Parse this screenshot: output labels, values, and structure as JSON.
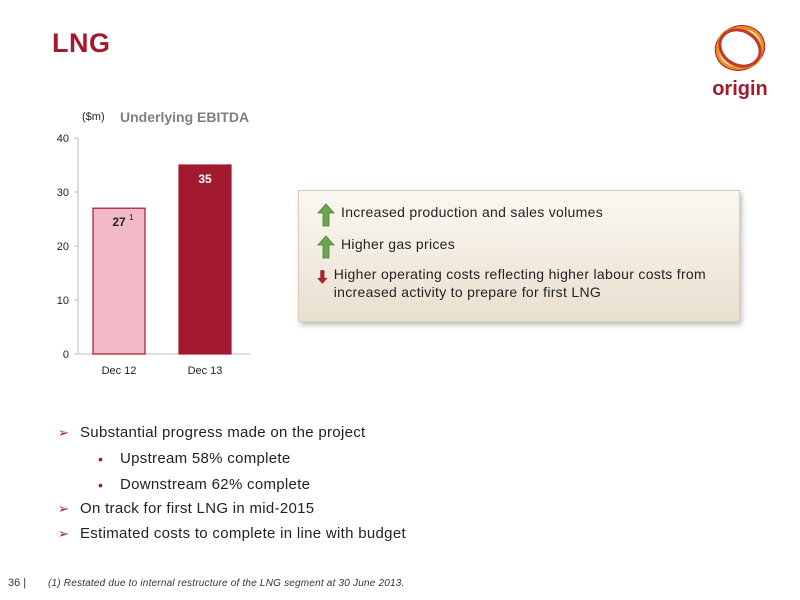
{
  "page": {
    "title": "LNG",
    "logo_text": "origin",
    "page_number": "36 |",
    "footnote": "(1)  Restated due to internal restructure of the LNG segment at 30 June 2013."
  },
  "colors": {
    "brand": "#a3192e",
    "bar_dec12": "#f2b9c6",
    "bar_dec13": "#a3192e",
    "arrow_up": "#6aa84f",
    "arrow_down": "#b0212f"
  },
  "chart_data": {
    "type": "bar",
    "title": "Underlying EBITDA",
    "ylabel": "($m)",
    "categories": [
      "Dec 12",
      "Dec 13"
    ],
    "values": [
      27,
      35
    ],
    "value_labels": [
      "27",
      "35"
    ],
    "annotations": [
      {
        "category": "Dec 12",
        "text": "1"
      }
    ],
    "yticks": [
      "0",
      "10",
      "20",
      "30",
      "40"
    ],
    "ylim": [
      0,
      40
    ],
    "grid": false
  },
  "callout": {
    "items": [
      {
        "icon": "up-arrow-icon",
        "text": "Increased production and sales volumes"
      },
      {
        "icon": "up-arrow-icon",
        "text": "Higher gas prices"
      },
      {
        "icon": "down-arrow-icon",
        "text": "Higher operating costs reflecting higher labour costs from increased activity to prepare for first LNG"
      }
    ]
  },
  "bullets": {
    "b1": "Substantial progress made on the project",
    "b1a": "Upstream 58% complete",
    "b1b": "Downstream 62% complete",
    "b2": "On track for first LNG in mid-2015",
    "b3": "Estimated costs to complete in line with budget"
  }
}
